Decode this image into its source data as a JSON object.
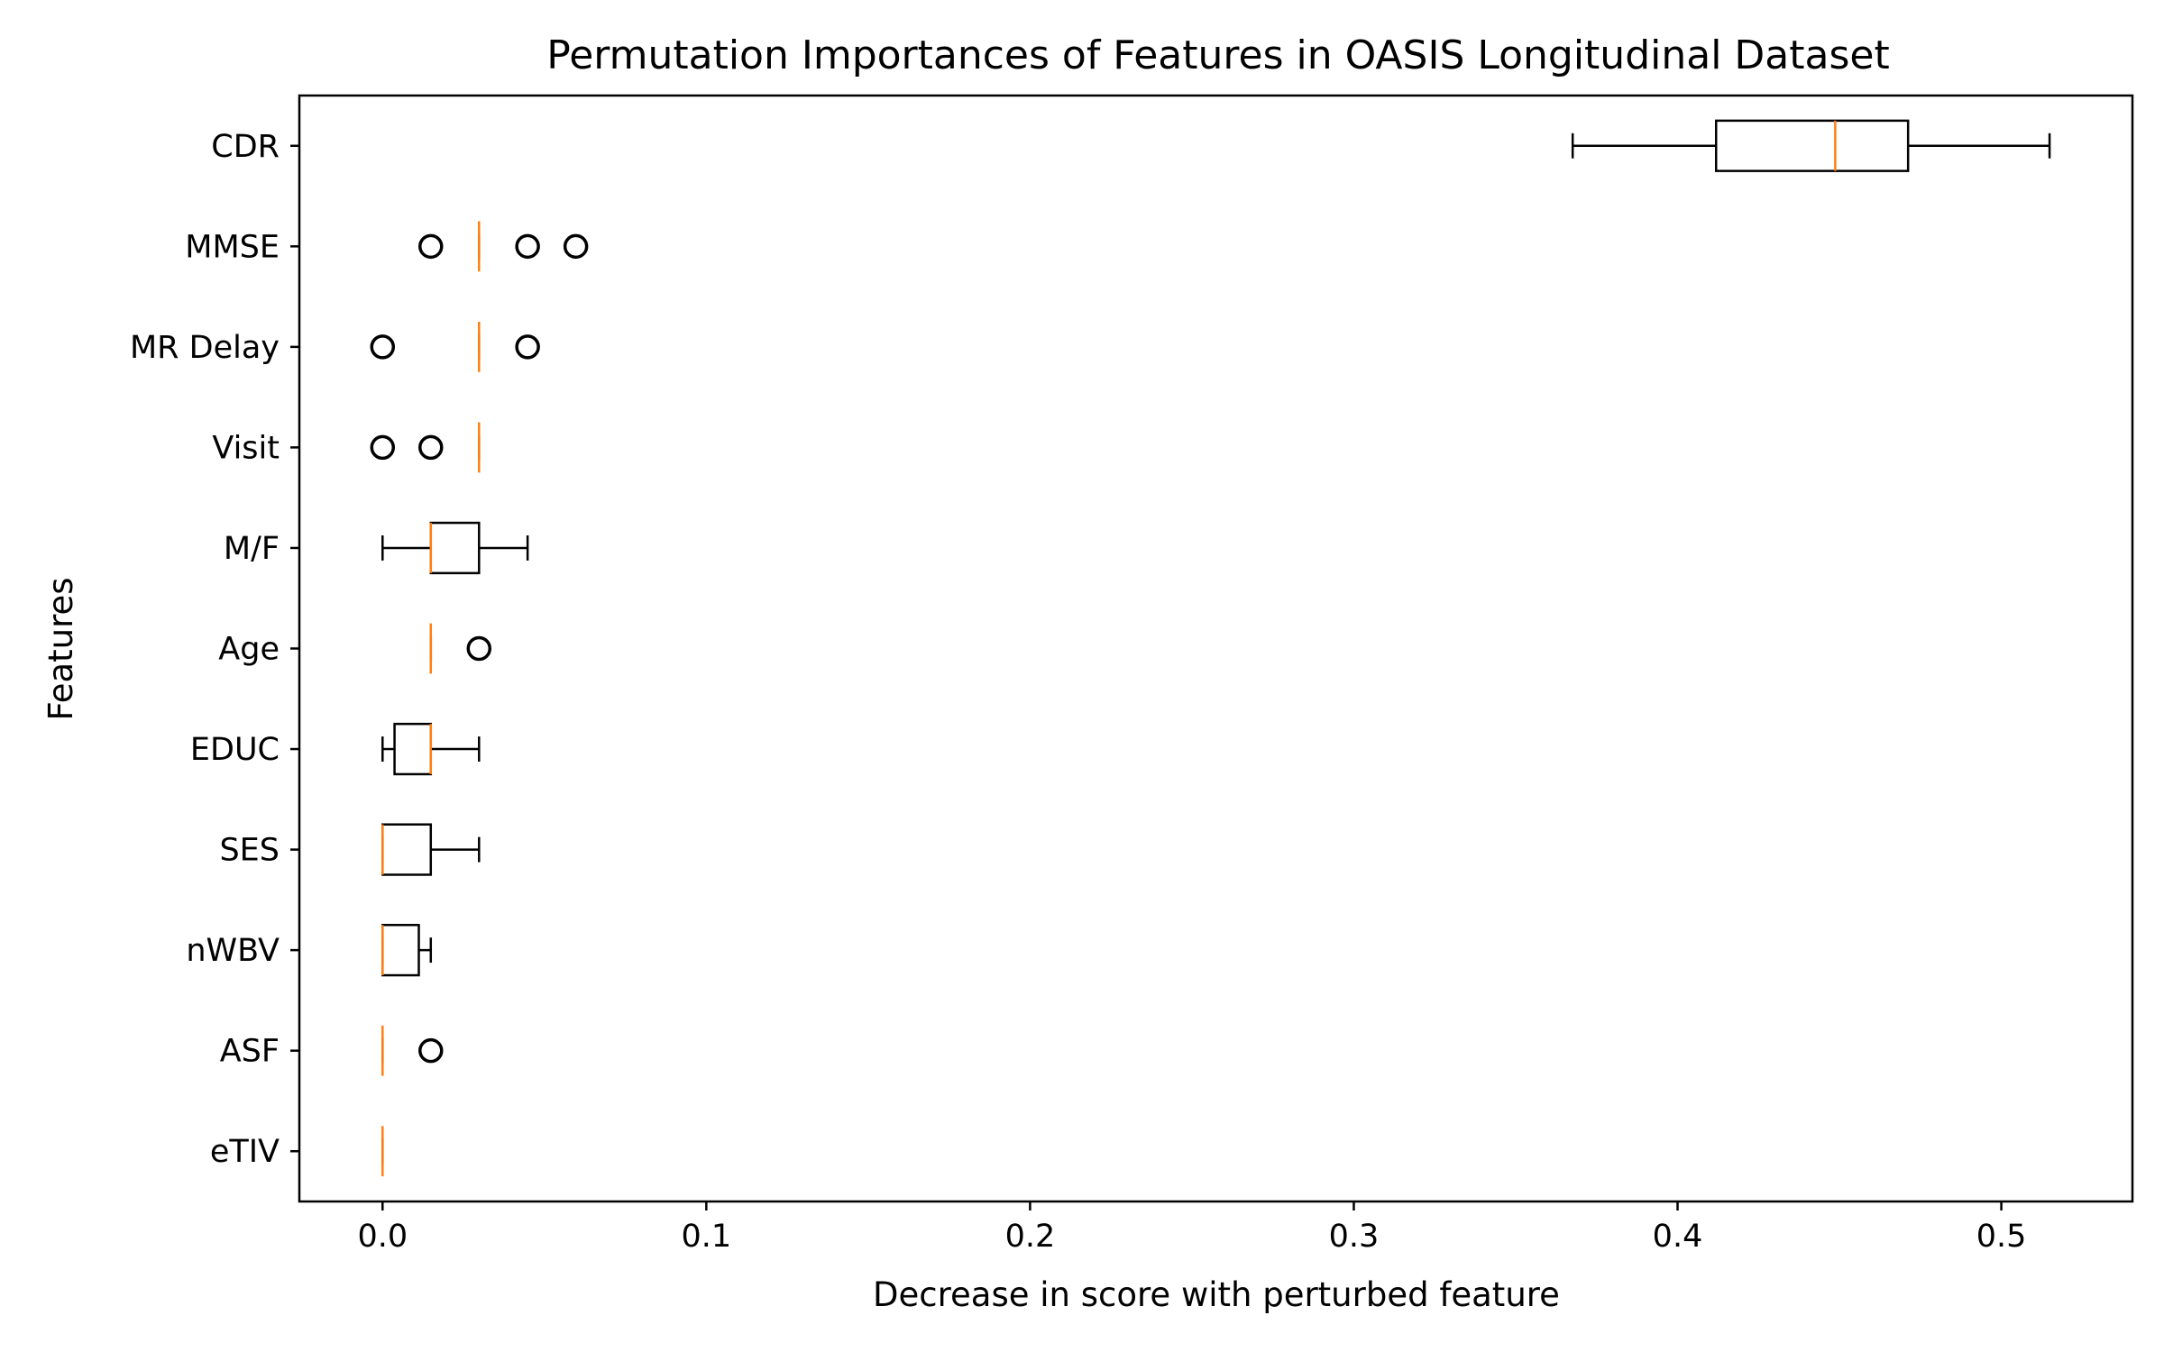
{
  "chart_data": {
    "type": "boxplot",
    "orientation": "horizontal",
    "title": "Permutation Importances of Features in OASIS Longitudinal Dataset",
    "xlabel": "Decrease in score with perturbed feature",
    "ylabel": "Features",
    "xlim": [
      -0.0257,
      0.5405
    ],
    "xticks": [
      0.0,
      0.1,
      0.2,
      0.3,
      0.4,
      0.5
    ],
    "xtick_labels": [
      "0.0",
      "0.1",
      "0.2",
      "0.3",
      "0.4",
      "0.5"
    ],
    "grid": false,
    "colors": {
      "box": "#000000",
      "median": "#ff7f0e",
      "flier": "#000000"
    },
    "series": [
      {
        "name": "eTIV",
        "whisker_low": 0.0,
        "q1": 0.0,
        "median": 0.0,
        "q3": 0.0,
        "whisker_high": 0.0,
        "fliers": []
      },
      {
        "name": "ASF",
        "whisker_low": 0.0,
        "q1": 0.0,
        "median": 0.0,
        "q3": 0.0,
        "whisker_high": 0.0,
        "fliers": [
          0.0149
        ]
      },
      {
        "name": "nWBV",
        "whisker_low": 0.0,
        "q1": 0.0,
        "median": 0.0,
        "q3": 0.0112,
        "whisker_high": 0.0149,
        "fliers": []
      },
      {
        "name": "SES",
        "whisker_low": 0.0,
        "q1": 0.0,
        "median": 0.0,
        "q3": 0.0149,
        "whisker_high": 0.0298,
        "fliers": []
      },
      {
        "name": "EDUC",
        "whisker_low": 0.0,
        "q1": 0.0037,
        "median": 0.0149,
        "q3": 0.0149,
        "whisker_high": 0.0298,
        "fliers": []
      },
      {
        "name": "Age",
        "whisker_low": 0.0149,
        "q1": 0.0149,
        "median": 0.0149,
        "q3": 0.0149,
        "whisker_high": 0.0149,
        "fliers": [
          0.0298
        ]
      },
      {
        "name": "M/F",
        "whisker_low": 0.0,
        "q1": 0.0149,
        "median": 0.0149,
        "q3": 0.0298,
        "whisker_high": 0.0448,
        "fliers": []
      },
      {
        "name": "Visit",
        "whisker_low": 0.0298,
        "q1": 0.0298,
        "median": 0.0298,
        "q3": 0.0298,
        "whisker_high": 0.0298,
        "fliers": [
          0.0,
          0.0149
        ]
      },
      {
        "name": "MR Delay",
        "whisker_low": 0.0298,
        "q1": 0.0298,
        "median": 0.0298,
        "q3": 0.0298,
        "whisker_high": 0.0298,
        "fliers": [
          0.0,
          0.0448
        ]
      },
      {
        "name": "MMSE",
        "whisker_low": 0.0298,
        "q1": 0.0298,
        "median": 0.0298,
        "q3": 0.0298,
        "whisker_high": 0.0298,
        "fliers": [
          0.0149,
          0.0448,
          0.0597
        ]
      },
      {
        "name": "CDR",
        "whisker_low": 0.3676,
        "q1": 0.4119,
        "median": 0.4487,
        "q3": 0.4712,
        "whisker_high": 0.5149,
        "fliers": []
      }
    ]
  }
}
